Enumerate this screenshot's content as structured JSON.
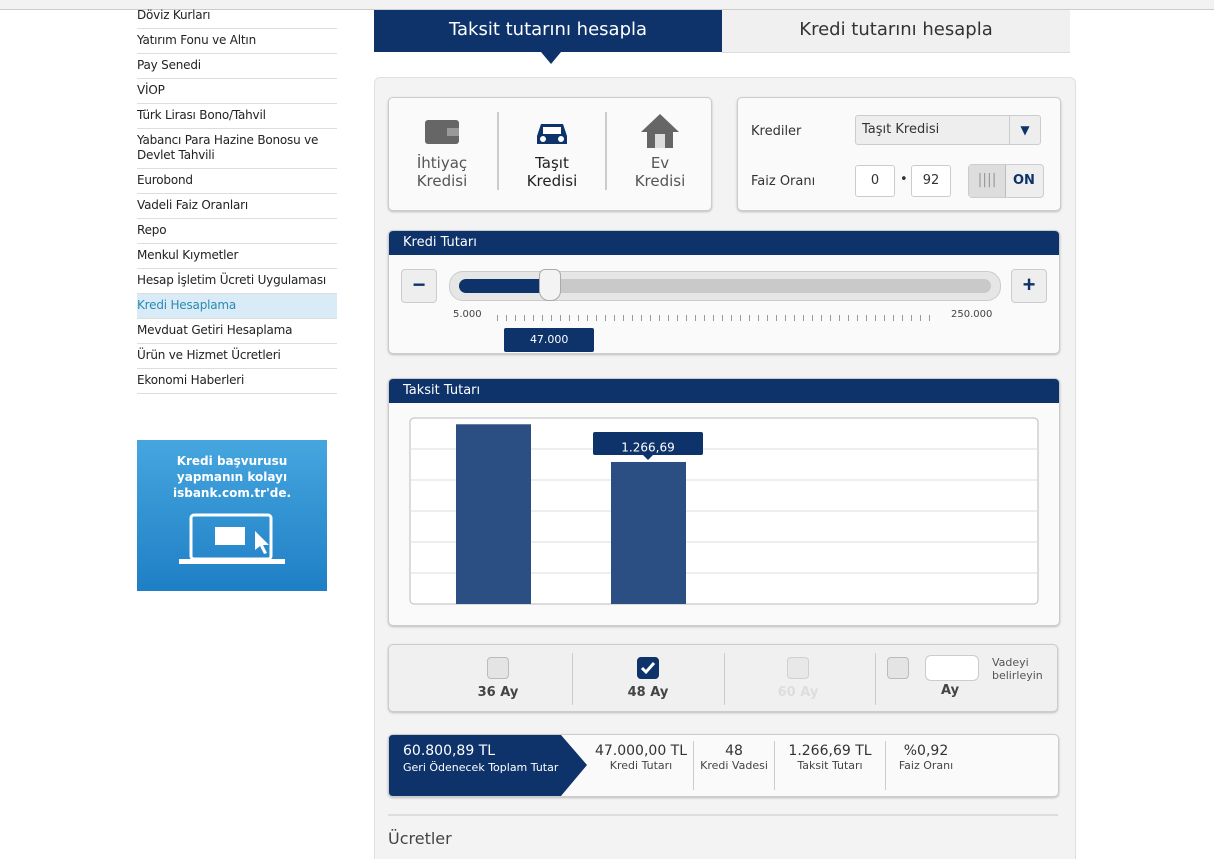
{
  "sidebar": {
    "items": [
      {
        "label": "Döviz Kurları"
      },
      {
        "label": "Yatırım Fonu ve Altın"
      },
      {
        "label": "Pay Senedi"
      },
      {
        "label": "VİOP"
      },
      {
        "label": "Türk Lirası Bono/Tahvil",
        "expandable": true
      },
      {
        "label": "Yabancı Para Hazine Bonosu ve Devlet Tahvili"
      },
      {
        "label": "Eurobond"
      },
      {
        "label": "Vadeli Faiz Oranları",
        "expandable": true
      },
      {
        "label": "Repo"
      },
      {
        "label": "Menkul Kıymetler",
        "expandable": true
      },
      {
        "label": "Hesap İşletim Ücreti Uygulaması"
      },
      {
        "label": "Kredi Hesaplama",
        "active": true
      },
      {
        "label": "Mevduat Getiri Hesaplama"
      },
      {
        "label": "Ürün ve Hizmet Ücretleri"
      },
      {
        "label": "Ekonomi Haberleri"
      }
    ]
  },
  "banner": {
    "lines": [
      "Kredi başvurusu",
      "yapmanın kolayı",
      "isbank.com.tr'de."
    ]
  },
  "tabs": [
    "Taksit tutarını hesapla",
    "Kredi tutarını hesapla"
  ],
  "loan_types": [
    {
      "line1": "İhtiyaç",
      "line2": "Kredisi"
    },
    {
      "line1": "Taşıt",
      "line2": "Kredisi",
      "active": true
    },
    {
      "line1": "Ev",
      "line2": "Kredisi"
    }
  ],
  "form": {
    "loans_label": "Krediler",
    "loan_value": "Taşıt Kredisi",
    "rate_label": "Faiz Oranı",
    "rate_integer": "0",
    "rate_decimal": "92",
    "toggle": "ON"
  },
  "amount": {
    "title": "Kredi Tutarı",
    "min": "5.000",
    "max": "250.000",
    "value": "47.000"
  },
  "installment": {
    "title": "Taksit Tutarı"
  },
  "chart_data": {
    "type": "bar",
    "categories": [
      "36 Ay",
      "48 Ay"
    ],
    "values": [
      1603,
      1266.69
    ],
    "value_labels": [
      null,
      "1.266,69"
    ],
    "color": "#2b4f82",
    "ylim": [
      0,
      1650
    ]
  },
  "terms": [
    {
      "label": "36 Ay",
      "checked": false
    },
    {
      "label": "48 Ay",
      "checked": true
    },
    {
      "label": "60 Ay",
      "checked": false,
      "disabled": true
    }
  ],
  "custom_term": {
    "label": "Ay",
    "hint": "Vadeyi belirleyin"
  },
  "summary": {
    "total": "60.800,89 TL",
    "total_label": "Geri Ödenecek Toplam Tutar",
    "items": [
      {
        "value": "47.000,00 TL",
        "label": "Kredi Tutarı"
      },
      {
        "value": "48",
        "label": "Kredi Vadesi"
      },
      {
        "value": "1.266,69 TL",
        "label": "Taksit Tutarı"
      },
      {
        "value": "%0,92",
        "label": "Faiz Oranı"
      }
    ]
  },
  "fees_title": "Ücretler"
}
